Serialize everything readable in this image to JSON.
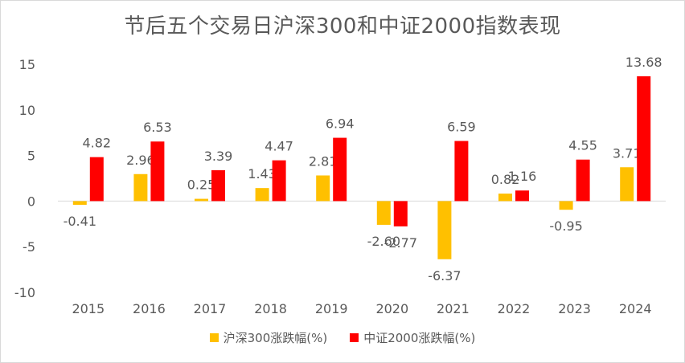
{
  "chart_data": {
    "type": "bar",
    "title": "节后五个交易日沪深300和中证2000指数表现",
    "categories": [
      "2015",
      "2016",
      "2017",
      "2018",
      "2019",
      "2020",
      "2021",
      "2022",
      "2023",
      "2024"
    ],
    "series": [
      {
        "name": "沪深300涨跌幅(%)",
        "color": "#FFC000",
        "values": [
          -0.41,
          2.96,
          0.25,
          1.43,
          2.81,
          -2.6,
          -6.37,
          0.82,
          -0.95,
          3.71
        ],
        "labels": [
          "-0.41",
          "2.96",
          "0.25",
          "1.43",
          "2.81",
          "-2.60",
          "-6.37",
          "0.82",
          "-0.95",
          "3.71"
        ]
      },
      {
        "name": "中证2000涨跌幅(%)",
        "color": "#FF0000",
        "values": [
          4.82,
          6.53,
          3.39,
          4.47,
          6.94,
          -2.77,
          6.59,
          1.16,
          4.55,
          13.68
        ],
        "labels": [
          "4.82",
          "6.53",
          "3.39",
          "4.47",
          "6.94",
          "-2.77",
          "6.59",
          "1.16",
          "4.55",
          "13.68"
        ]
      }
    ],
    "yticks": [
      "-10",
      "-5",
      "0",
      "5",
      "10",
      "15"
    ],
    "ylim": [
      -10,
      15
    ],
    "xlabel": "",
    "ylabel": "",
    "grid": false,
    "legend_position": "bottom"
  }
}
